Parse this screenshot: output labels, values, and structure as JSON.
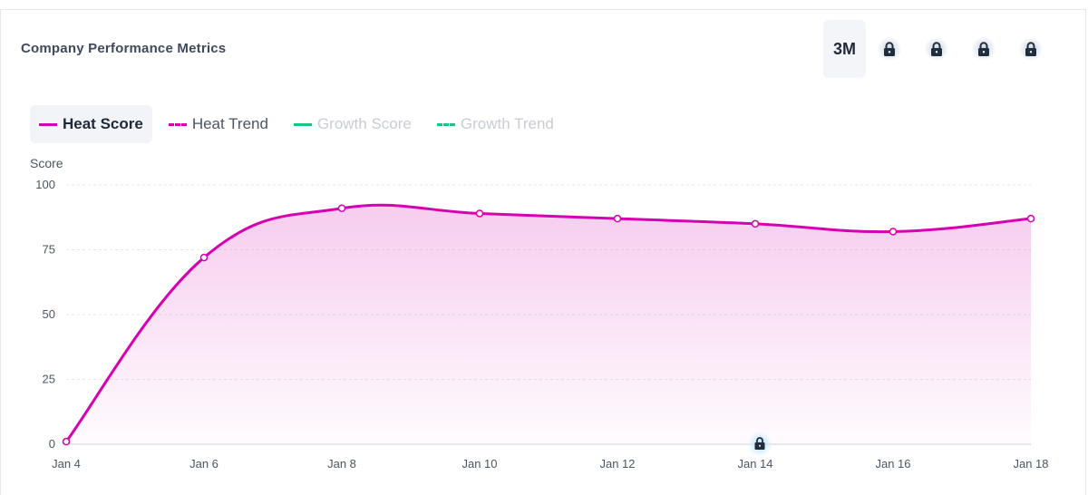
{
  "header": {
    "title": "Company Performance Metrics"
  },
  "periods": {
    "active_label": "3M",
    "locked": [
      {
        "icon": "lock-icon"
      },
      {
        "icon": "lock-icon"
      },
      {
        "icon": "lock-icon"
      },
      {
        "icon": "lock-icon"
      }
    ]
  },
  "legend": {
    "items": [
      {
        "label": "Heat Score",
        "color": "#d600b0",
        "style": "solid",
        "state": "active"
      },
      {
        "label": "Heat Trend",
        "color": "#d600b0",
        "style": "dashed",
        "state": "enabled"
      },
      {
        "label": "Growth Score",
        "color": "#16c784",
        "style": "solid",
        "state": "disabled"
      },
      {
        "label": "Growth Trend",
        "color": "#16c784",
        "style": "dashed",
        "state": "disabled"
      }
    ]
  },
  "chart_data": {
    "type": "area",
    "title": "",
    "ylabel": "Score",
    "xlabel": "",
    "ylim": [
      0,
      100
    ],
    "yticks": [
      0,
      25,
      50,
      75,
      100
    ],
    "categories": [
      "Jan 4",
      "Jan 6",
      "Jan 8",
      "Jan 10",
      "Jan 12",
      "Jan 14",
      "Jan 16",
      "Jan 18"
    ],
    "x": [
      "Jan 4",
      "Jan 6",
      "Jan 8",
      "Jan 10",
      "Jan 12",
      "Jan 14",
      "Jan 16",
      "Jan 18"
    ],
    "series": [
      {
        "name": "Heat Score",
        "color": "#d600b0",
        "values": [
          1,
          72,
          91,
          89,
          87,
          85,
          82,
          87
        ]
      }
    ],
    "grid": true,
    "legend_position": "top-left",
    "locked_marker": {
      "x": "Jan 14",
      "icon": "lock-icon"
    }
  }
}
